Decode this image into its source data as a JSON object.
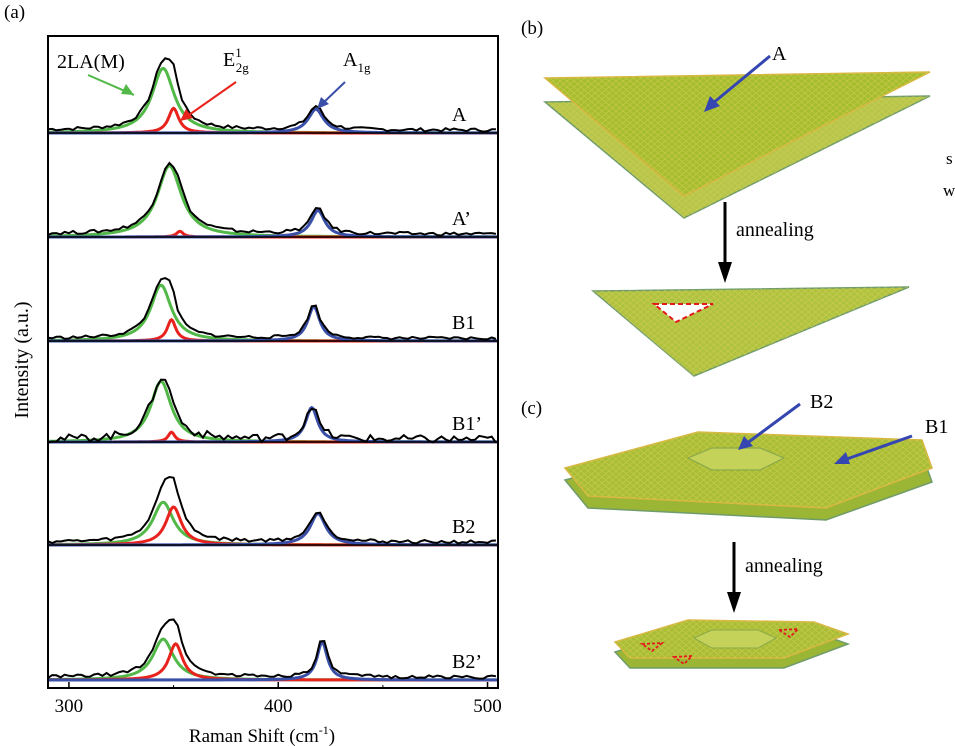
{
  "panel_labels": {
    "a": "(a)",
    "b": "(b)",
    "c": "(c)"
  },
  "chart_data": {
    "type": "line",
    "xlabel": "Raman Shift (cm",
    "xlabel_sup": "-1",
    "xlabel_end": ")",
    "ylabel": "Intensity (a.u.)",
    "xlim": [
      290,
      505
    ],
    "xticks": [
      300,
      400,
      500
    ],
    "tick_labels": [
      "300",
      "400",
      "500"
    ],
    "peak_labels": {
      "twoLA": "2LA(M)",
      "e2g_main": "E",
      "e2g_sup": "1",
      "e2g_sub": "2g",
      "a1g_main": "A",
      "a1g_sub": "1g"
    },
    "component_colors": {
      "measured": "#000000",
      "twoLA": "#52b848",
      "e2g": "#e8231d",
      "a1g": "#3a4fa8",
      "baseline": "#3a4fa8"
    },
    "spectra": [
      {
        "name": "A",
        "twoLA": {
          "center": 345,
          "amplitude": 0.68,
          "width": 6.5
        },
        "e2g": {
          "center": 350,
          "amplitude": 0.26,
          "width": 3.0
        },
        "a1g": {
          "center": 418,
          "amplitude": 0.25,
          "width": 4.5
        }
      },
      {
        "name": "A’",
        "twoLA": {
          "center": 348,
          "amplitude": 0.75,
          "width": 7.0
        },
        "e2g": {
          "center": 353,
          "amplitude": 0.06,
          "width": 2.0
        },
        "a1g": {
          "center": 419,
          "amplitude": 0.28,
          "width": 4.0
        }
      },
      {
        "name": "B1",
        "twoLA": {
          "center": 344,
          "amplitude": 0.68,
          "width": 6.0
        },
        "e2g": {
          "center": 349,
          "amplitude": 0.26,
          "width": 2.5
        },
        "a1g": {
          "center": 417,
          "amplitude": 0.42,
          "width": 3.5
        }
      },
      {
        "name": "B1’",
        "twoLA": {
          "center": 344,
          "amplitude": 0.74,
          "width": 6.0
        },
        "e2g": {
          "center": 349,
          "amplitude": 0.12,
          "width": 2.0
        },
        "a1g": {
          "center": 416,
          "amplitude": 0.42,
          "width": 3.5
        }
      },
      {
        "name": "B2",
        "twoLA": {
          "center": 345,
          "amplitude": 0.45,
          "width": 6.0
        },
        "e2g": {
          "center": 350,
          "amplitude": 0.4,
          "width": 4.5
        },
        "a1g": {
          "center": 419,
          "amplitude": 0.33,
          "width": 4.5
        }
      },
      {
        "name": "B2’",
        "twoLA": {
          "center": 345,
          "amplitude": 0.43,
          "width": 6.0
        },
        "e2g": {
          "center": 351,
          "amplitude": 0.38,
          "width": 4.0
        },
        "a1g": {
          "center": 421,
          "amplitude": 0.4,
          "width": 3.0
        }
      }
    ]
  },
  "schematic": {
    "label_A": "A",
    "label_B1": "B1",
    "label_B2": "B2",
    "arrow_text_1": "annealing",
    "arrow_text_2": "annealing",
    "edge_text_1": "s",
    "edge_text_2": "w",
    "colors": {
      "sheet_fill": "#a6bd2e",
      "sheet_light": "#c2d24c",
      "sheet_edge": "#6f9c6a",
      "arrow": "#3546b0",
      "defect": "#e31a1c"
    }
  }
}
